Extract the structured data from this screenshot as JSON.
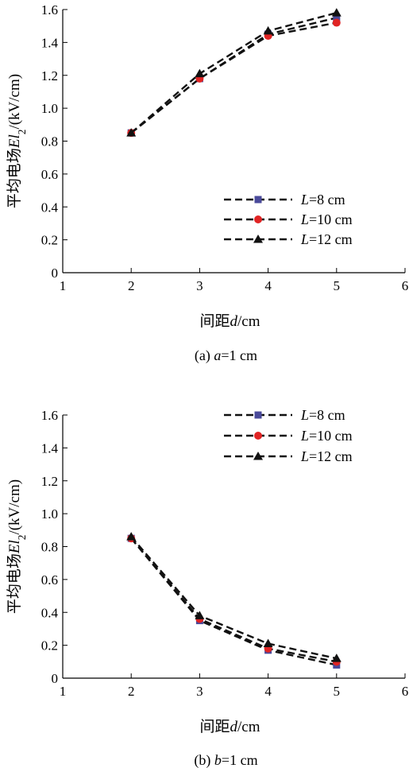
{
  "chart_data": [
    {
      "type": "line",
      "title": "",
      "caption": "(a) a=1 cm",
      "caption_parts": [
        "(a) ",
        "a",
        "=1 cm"
      ],
      "xlabel": "间距d/cm",
      "xlabel_parts": [
        "间距",
        "d",
        "/cm"
      ],
      "ylabel": "平均电场El2/(kV/cm)",
      "ylabel_parts": [
        "平均电场",
        "El",
        "2",
        "/(kV/cm)"
      ],
      "xlim": [
        1,
        6
      ],
      "ylim": [
        0,
        1.6
      ],
      "xticks": [
        1,
        2,
        3,
        4,
        5,
        6
      ],
      "yticks": [
        0,
        0.2,
        0.4,
        0.6,
        0.8,
        1.0,
        1.2,
        1.4,
        1.6
      ],
      "ytick_labels": [
        "0",
        "0.2",
        "0.4",
        "0.6",
        "0.8",
        "1.0",
        "1.2",
        "1.4",
        "1.6"
      ],
      "grid": false,
      "legend_position": "bottom-right",
      "x": [
        2,
        3,
        4,
        5
      ],
      "series": [
        {
          "name": "L=8 cm",
          "name_parts": [
            "L",
            "=8 cm"
          ],
          "values": [
            0.85,
            1.18,
            1.45,
            1.55
          ],
          "color": "#4a4a9a",
          "marker": "square"
        },
        {
          "name": "L=10 cm",
          "name_parts": [
            "L",
            "=10 cm"
          ],
          "values": [
            0.85,
            1.18,
            1.44,
            1.52
          ],
          "color": "#e02424",
          "marker": "circle"
        },
        {
          "name": "L=12 cm",
          "name_parts": [
            "L",
            "=12 cm"
          ],
          "values": [
            0.85,
            1.21,
            1.47,
            1.58
          ],
          "color": "#111111",
          "marker": "triangle"
        }
      ]
    },
    {
      "type": "line",
      "title": "",
      "caption": "(b) b=1 cm",
      "caption_parts": [
        "(b) ",
        "b",
        "=1 cm"
      ],
      "xlabel": "间距d/cm",
      "xlabel_parts": [
        "间距",
        "d",
        "/cm"
      ],
      "ylabel": "平均电场El2/(kV/cm)",
      "ylabel_parts": [
        "平均电场",
        "El",
        "2",
        "/(kV/cm)"
      ],
      "xlim": [
        1,
        6
      ],
      "ylim": [
        0,
        1.6
      ],
      "xticks": [
        1,
        2,
        3,
        4,
        5,
        6
      ],
      "yticks": [
        0,
        0.2,
        0.4,
        0.6,
        0.8,
        1.0,
        1.2,
        1.4,
        1.6
      ],
      "ytick_labels": [
        "0",
        "0.2",
        "0.4",
        "0.6",
        "0.8",
        "1.0",
        "1.2",
        "1.4",
        "1.6"
      ],
      "grid": false,
      "legend_position": "top-right",
      "x": [
        2,
        3,
        4,
        5
      ],
      "series": [
        {
          "name": "L=8 cm",
          "name_parts": [
            "L",
            "=8 cm"
          ],
          "values": [
            0.85,
            0.35,
            0.17,
            0.08
          ],
          "color": "#4a4a9a",
          "marker": "square"
        },
        {
          "name": "L=10 cm",
          "name_parts": [
            "L",
            "=10 cm"
          ],
          "values": [
            0.85,
            0.36,
            0.18,
            0.1
          ],
          "color": "#e02424",
          "marker": "circle"
        },
        {
          "name": "L=12 cm",
          "name_parts": [
            "L",
            "=12 cm"
          ],
          "values": [
            0.86,
            0.38,
            0.21,
            0.12
          ],
          "color": "#111111",
          "marker": "triangle"
        }
      ]
    }
  ]
}
